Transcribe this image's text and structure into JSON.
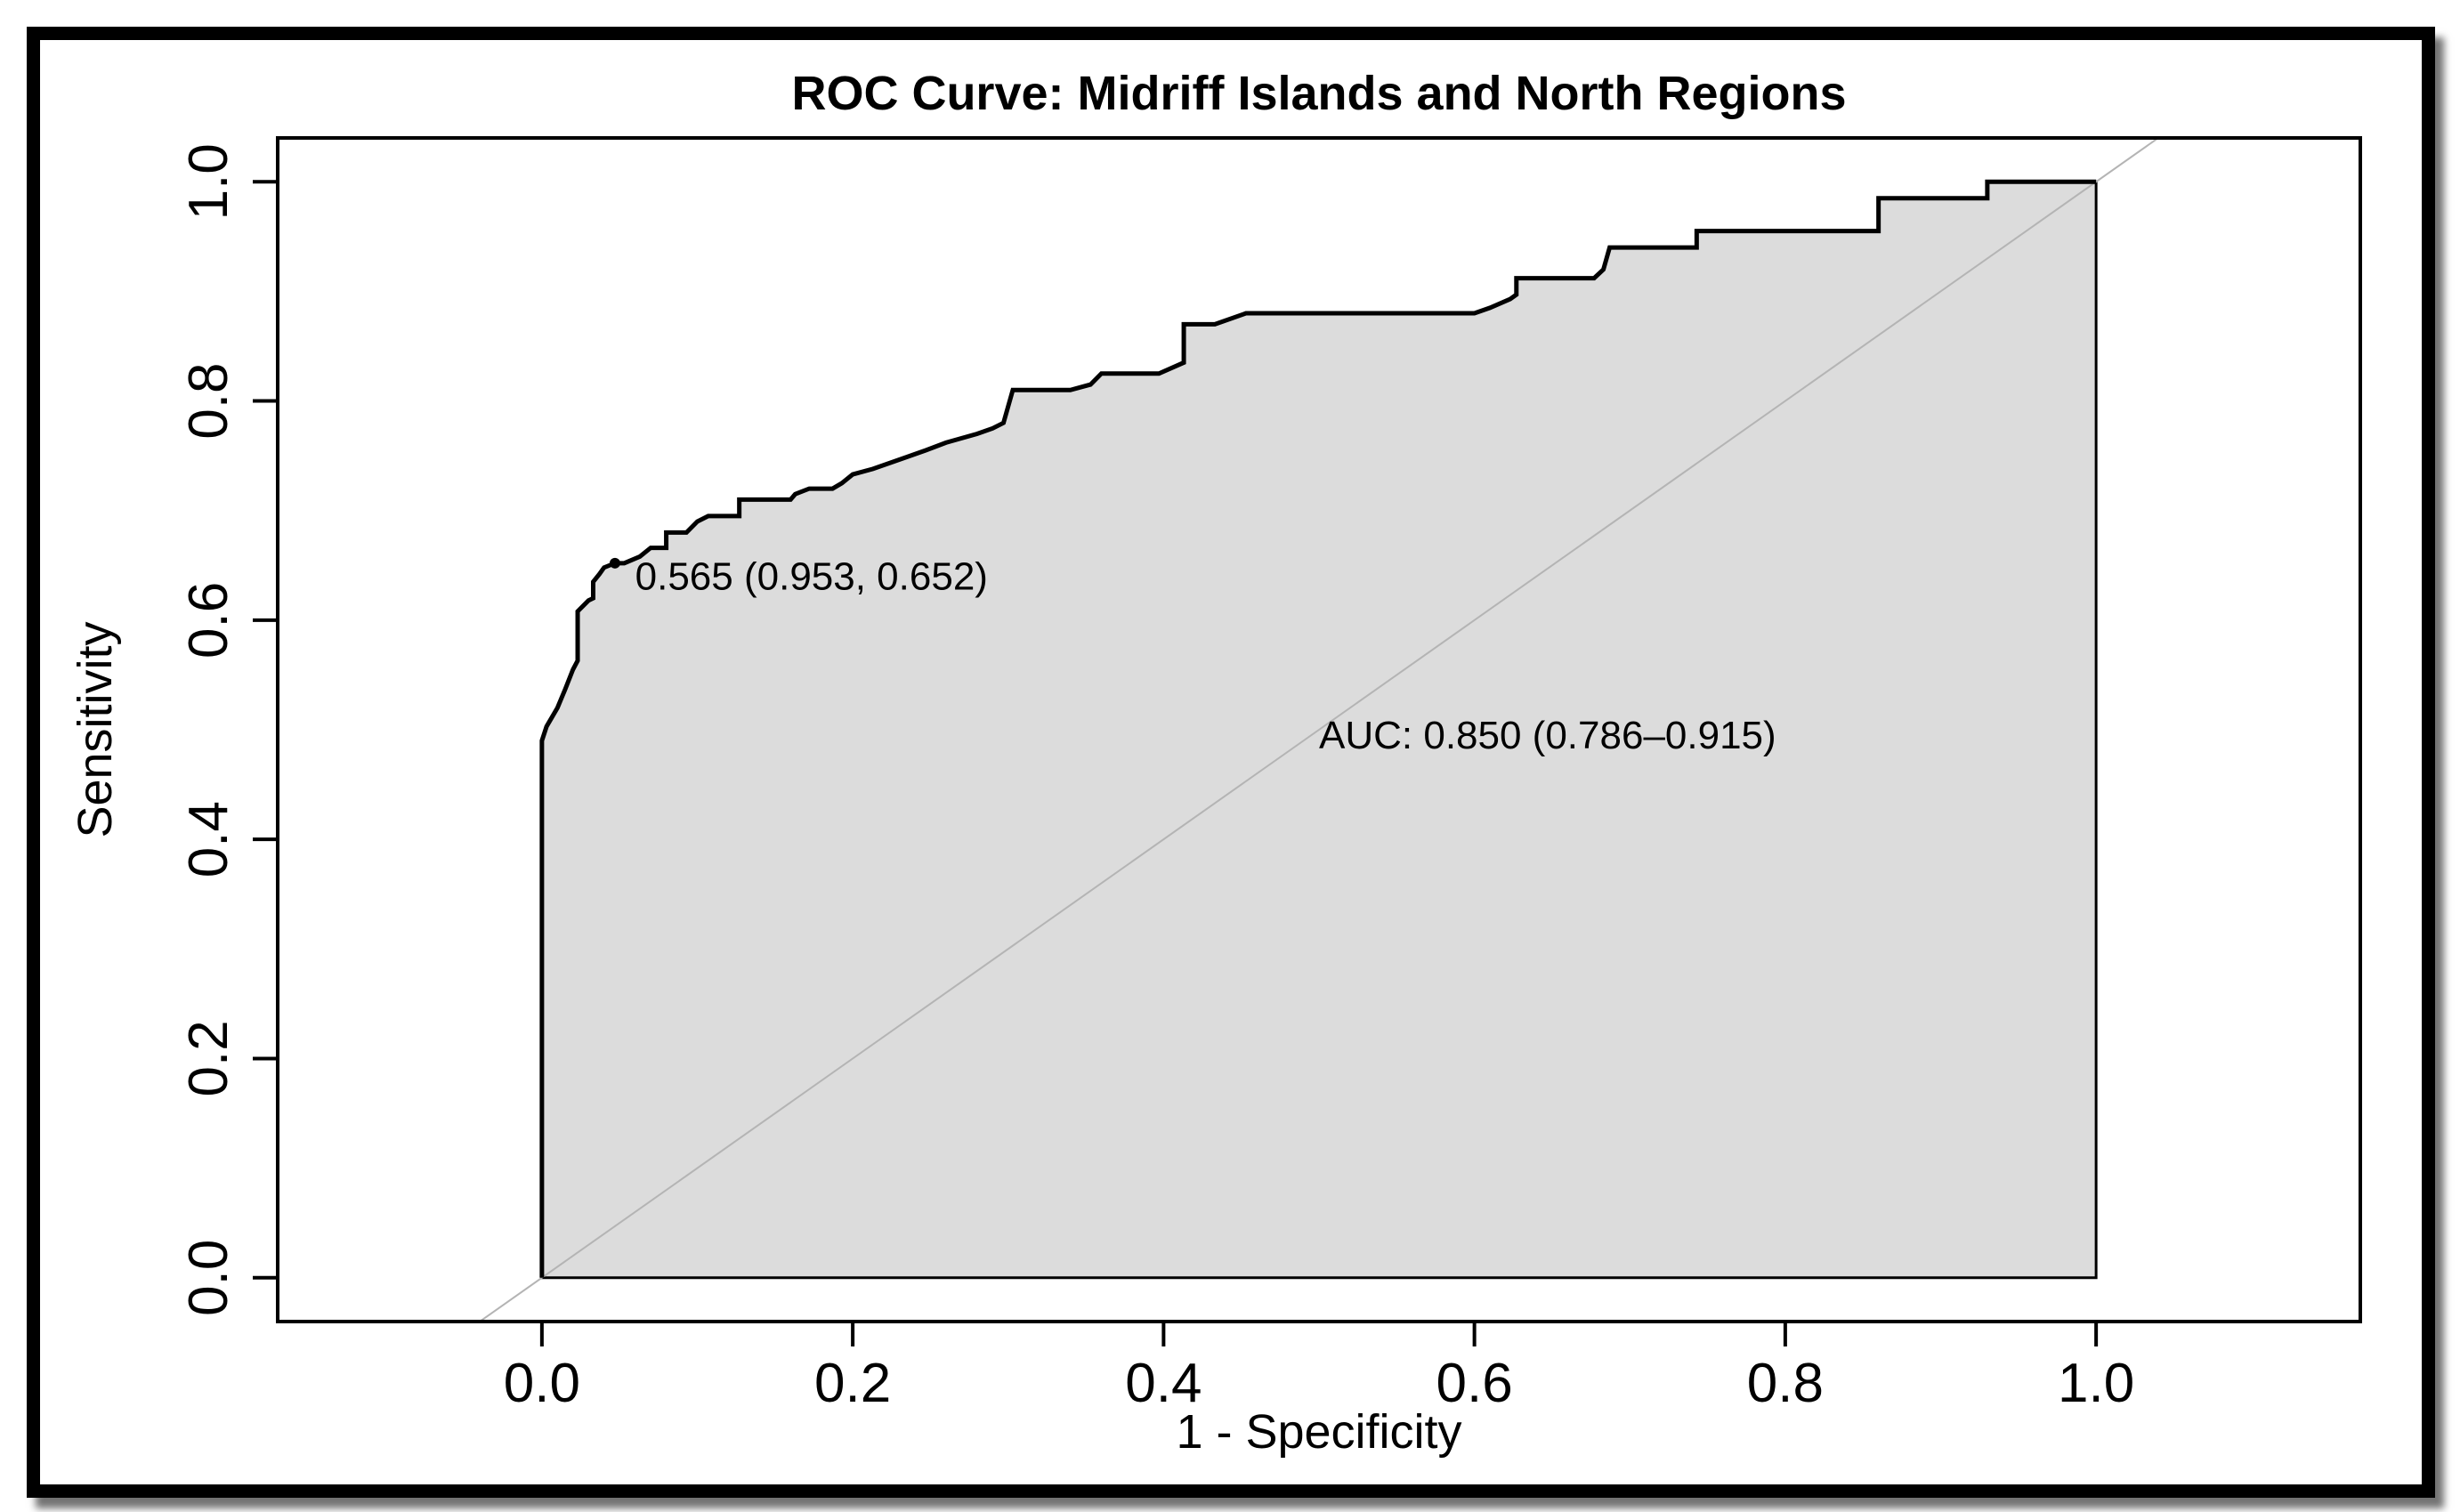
{
  "chart_data": {
    "type": "line",
    "title": "ROC Curve: Midriff Islands and North Regions",
    "xlabel": "1 - Specificity",
    "ylabel": "Sensitivity",
    "xlim": [
      -0.17,
      1.17
    ],
    "ylim": [
      -0.04,
      1.04
    ],
    "xticks": [
      0.0,
      0.2,
      0.4,
      0.6,
      0.8,
      1.0
    ],
    "xtick_labels": [
      "0.0",
      "0.2",
      "0.4",
      "0.6",
      "0.8",
      "1.0"
    ],
    "yticks": [
      0.0,
      0.2,
      0.4,
      0.6,
      0.8,
      1.0
    ],
    "ytick_labels": [
      "0.0",
      "0.2",
      "0.4",
      "0.6",
      "0.8",
      "1.0"
    ],
    "grid": false,
    "fill_color": "#dcdcdc",
    "curve_color": "#000000",
    "diagonal_color": "#b4b4b4",
    "series": [
      {
        "name": "ROC",
        "x": [
          0.0,
          0.0,
          0.003,
          0.01,
          0.015,
          0.02,
          0.023,
          0.023,
          0.03,
          0.033,
          0.033,
          0.037,
          0.04,
          0.047,
          0.053,
          0.063,
          0.07,
          0.08,
          0.08,
          0.093,
          0.1,
          0.107,
          0.127,
          0.127,
          0.16,
          0.163,
          0.172,
          0.187,
          0.193,
          0.2,
          0.213,
          0.233,
          0.247,
          0.26,
          0.28,
          0.29,
          0.297,
          0.3,
          0.303,
          0.34,
          0.353,
          0.36,
          0.397,
          0.413,
          0.413,
          0.433,
          0.453,
          0.6,
          0.61,
          0.623,
          0.627,
          0.627,
          0.677,
          0.683,
          0.687,
          0.743,
          0.743,
          0.76,
          0.86,
          0.86,
          0.93,
          0.93,
          1.0
        ],
        "y": [
          0.0,
          0.49,
          0.503,
          0.52,
          0.537,
          0.555,
          0.563,
          0.608,
          0.618,
          0.62,
          0.635,
          0.642,
          0.648,
          0.652,
          0.652,
          0.658,
          0.666,
          0.666,
          0.68,
          0.68,
          0.69,
          0.695,
          0.695,
          0.71,
          0.71,
          0.715,
          0.72,
          0.72,
          0.725,
          0.733,
          0.738,
          0.748,
          0.755,
          0.762,
          0.77,
          0.775,
          0.78,
          0.795,
          0.81,
          0.81,
          0.815,
          0.825,
          0.825,
          0.835,
          0.87,
          0.87,
          0.88,
          0.88,
          0.885,
          0.893,
          0.897,
          0.912,
          0.912,
          0.92,
          0.94,
          0.94,
          0.955,
          0.955,
          0.955,
          0.985,
          0.985,
          1.0,
          1.0
        ]
      },
      {
        "name": "reference diagonal",
        "x": [
          -0.17,
          1.17
        ],
        "y": [
          -0.17,
          1.17
        ]
      }
    ],
    "threshold_point": {
      "x": 0.047,
      "y": 0.652
    },
    "annotations": [
      {
        "text": "0.565 (0.953, 0.652)",
        "x": 0.06,
        "y": 0.628
      },
      {
        "text": "AUC: 0.850 (0.786–0.915)",
        "x": 0.5,
        "y": 0.483
      }
    ]
  }
}
